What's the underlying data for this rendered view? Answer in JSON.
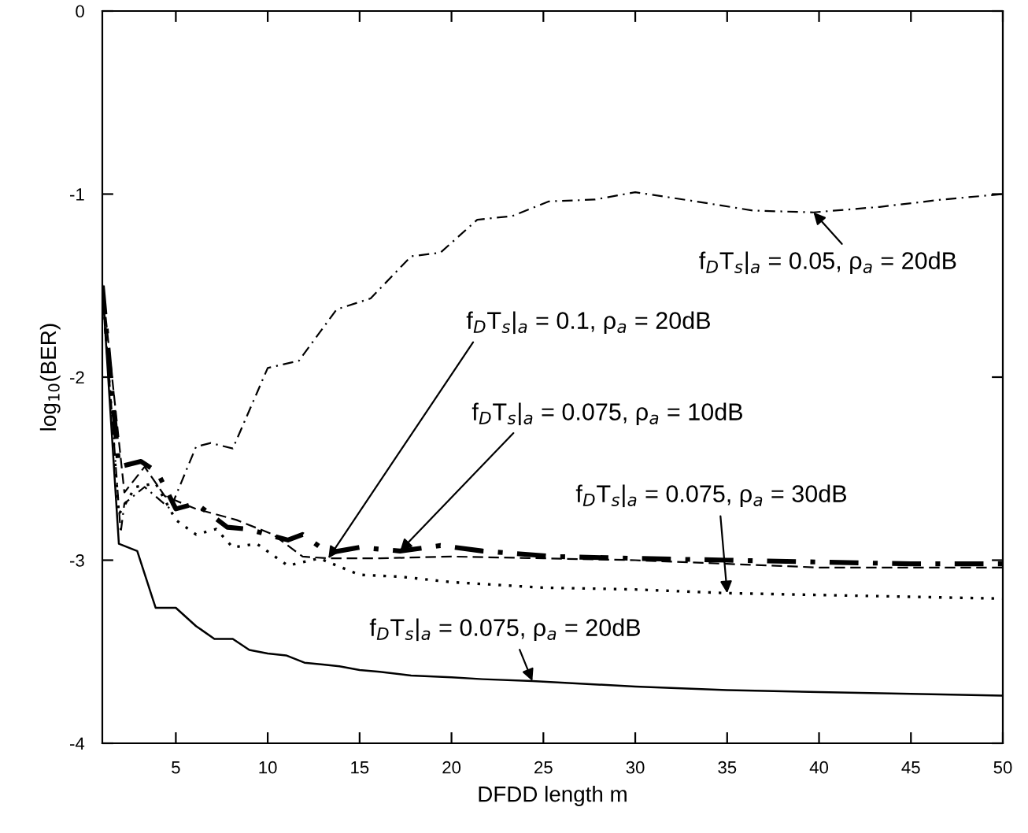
{
  "chart_data": {
    "type": "line",
    "xlabel": "DFDD length m",
    "ylabel": "log$_{10}$(BER)",
    "xlim": [
      1,
      50
    ],
    "ylim": [
      -4,
      0
    ],
    "xticks": [
      5,
      10,
      15,
      20,
      25,
      30,
      35,
      40,
      45,
      50
    ],
    "yticks": [
      0,
      -1,
      -2,
      -3,
      -4
    ],
    "grid": false,
    "legend": false,
    "marker": "none",
    "series": [
      {
        "name": "f$_{D}$T$_{s}$|$_{a}$ = 0.05, ρ$_{a}$ = 20dB",
        "color": "#000000",
        "line_style": "dashdot",
        "x": [
          1,
          2,
          2.2,
          3.3,
          4.7,
          6.1,
          6.9,
          8.1,
          10,
          11.7,
          13.75,
          15.6,
          17.8,
          19.4,
          21.4,
          23.3,
          25.3,
          27.8,
          30,
          33.3,
          36.4,
          39.7,
          43.3,
          46.7,
          50
        ],
        "values": [
          -1.5,
          -2.85,
          -2.69,
          -2.6,
          -2.72,
          -2.38,
          -2.36,
          -2.39,
          -1.95,
          -1.91,
          -1.63,
          -1.57,
          -1.34,
          -1.32,
          -1.14,
          -1.12,
          -1.04,
          -1.03,
          -0.99,
          -1.04,
          -1.09,
          -1.1,
          -1.07,
          -1.03,
          -1.0
        ]
      },
      {
        "name": "f$_{D}$T$_{s}$|$_{a}$ = 0.1, ρ$_{a}$ = 20dB",
        "color": "#000000",
        "line_style": "dashed",
        "x": [
          1,
          2.2,
          3.3,
          4.4,
          6.1,
          8.3,
          10.3,
          11.9,
          13.3,
          16.1,
          20,
          25,
          30,
          35,
          40,
          45,
          50
        ],
        "values": [
          -1.5,
          -2.63,
          -2.49,
          -2.65,
          -2.72,
          -2.78,
          -2.86,
          -2.98,
          -2.99,
          -2.99,
          -2.98,
          -2.99,
          -3.0,
          -3.02,
          -3.04,
          -3.04,
          -3.04
        ]
      },
      {
        "name": "f$_{D}$T$_{s}$|$_{a}$ = 0.075, ρ$_{a}$ = 10dB",
        "color": "#000000",
        "line_style": "dashdot",
        "x": [
          1,
          1.9,
          3.1,
          4,
          5,
          6.1,
          7.8,
          8.9,
          11.1,
          11.9,
          13.3,
          15,
          17.2,
          19.4,
          21.7,
          25.6,
          30,
          35,
          40,
          45,
          50
        ],
        "values": [
          -1.5,
          -2.49,
          -2.46,
          -2.52,
          -2.72,
          -2.69,
          -2.82,
          -2.83,
          -2.89,
          -2.86,
          -2.96,
          -2.93,
          -2.95,
          -2.92,
          -2.95,
          -2.98,
          -2.99,
          -3.0,
          -3.01,
          -3.02,
          -3.02
        ]
      },
      {
        "name": "f$_{D}$T$_{s}$|$_{a}$ = 0.075, ρ$_{a}$ = 30dB",
        "color": "#000000",
        "line_style": "dotted",
        "x": [
          1,
          1.9,
          2.8,
          3.9,
          5,
          6.1,
          7.2,
          8.1,
          9.4,
          11.1,
          12.8,
          15,
          17.2,
          20,
          25,
          30,
          35,
          40,
          45,
          50
        ],
        "values": [
          -1.5,
          -2.75,
          -2.6,
          -2.58,
          -2.78,
          -2.86,
          -2.83,
          -2.93,
          -2.91,
          -3.03,
          -2.99,
          -3.08,
          -3.09,
          -3.12,
          -3.15,
          -3.16,
          -3.18,
          -3.19,
          -3.2,
          -3.21
        ]
      },
      {
        "name": "f$_{D}$T$_{s}$|$_{a}$ = 0.075, ρ$_{a}$ = 20dB",
        "color": "#000000",
        "line_style": "solid",
        "x": [
          1,
          1.9,
          2.9,
          3.9,
          5,
          6.1,
          7.1,
          8.1,
          9,
          10,
          11,
          12,
          13,
          13.9,
          15,
          16.1,
          17.8,
          20,
          21.7,
          24.4,
          30,
          35,
          40,
          45,
          50
        ],
        "values": [
          -1.5,
          -2.91,
          -2.95,
          -3.26,
          -3.26,
          -3.36,
          -3.43,
          -3.43,
          -3.49,
          -3.51,
          -3.52,
          -3.56,
          -3.57,
          -3.58,
          -3.6,
          -3.61,
          -3.63,
          -3.64,
          -3.65,
          -3.66,
          -3.69,
          -3.71,
          -3.72,
          -3.73,
          -3.74
        ]
      }
    ]
  }
}
